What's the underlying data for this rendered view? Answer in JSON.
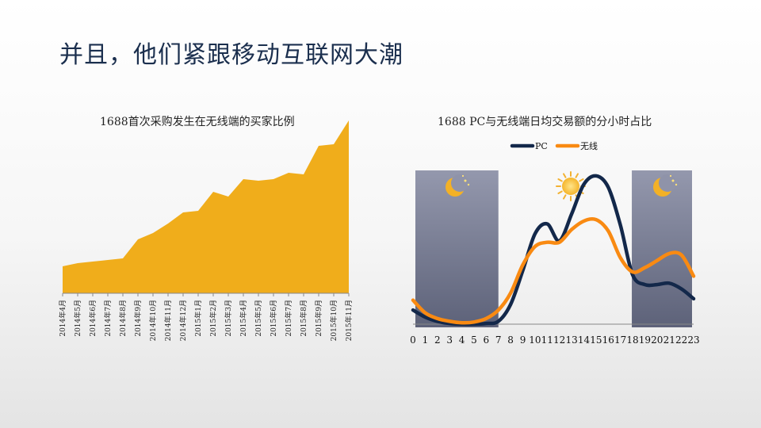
{
  "slide": {
    "title": "并且，他们紧跟移动互联网大潮"
  },
  "chart_data": [
    {
      "type": "area",
      "title": "1688首次采购发生在无线端的买家比例",
      "color": "#f0ad1b",
      "categories": [
        "2014年4月",
        "2014年5月",
        "2014年6月",
        "2014年7月",
        "2014年8月",
        "2014年9月",
        "2014年10月",
        "2014年11月",
        "2014年12月",
        "2015年1月",
        "2015年2月",
        "2015年3月",
        "2015年4月",
        "2015年5月",
        "2015年6月",
        "2015年7月",
        "2015年8月",
        "2015年9月",
        "2015年10月",
        "2015年11月"
      ],
      "values": [
        17,
        19,
        20,
        21,
        22,
        34,
        38,
        44,
        51,
        52,
        64,
        61,
        72,
        71,
        72,
        76,
        75,
        93,
        94,
        109
      ],
      "ylim": [
        0,
        110
      ],
      "grid": false
    },
    {
      "type": "line",
      "title": "1688 PC与无线端日均交易额的分小时占比",
      "legend_position": "top",
      "x": [
        0,
        1,
        2,
        3,
        4,
        5,
        6,
        7,
        8,
        9,
        10,
        11,
        12,
        13,
        14,
        15,
        16,
        17,
        18,
        19,
        20,
        21,
        22,
        23
      ],
      "series": [
        {
          "name": "PC",
          "color": "#13284a",
          "values": [
            10,
            5,
            2,
            0.5,
            0,
            0,
            0.5,
            2,
            14,
            38,
            64,
            71,
            59,
            78,
            99,
            105,
            97,
            70,
            35,
            28,
            28,
            29,
            25,
            18
          ]
        },
        {
          "name": "无线",
          "color": "#f98a12",
          "values": [
            17,
            8,
            4,
            2,
            1,
            1.5,
            4,
            10,
            22,
            42,
            55,
            58,
            58,
            67,
            73,
            74,
            66,
            47,
            37,
            40,
            45,
            50,
            49,
            34
          ]
        }
      ],
      "ylim": [
        0,
        110
      ],
      "grid": false,
      "night_bands": [
        [
          0,
          7
        ],
        [
          18,
          23
        ]
      ],
      "icons": [
        "moon-icon",
        "sun-icon",
        "moon-icon"
      ]
    }
  ]
}
